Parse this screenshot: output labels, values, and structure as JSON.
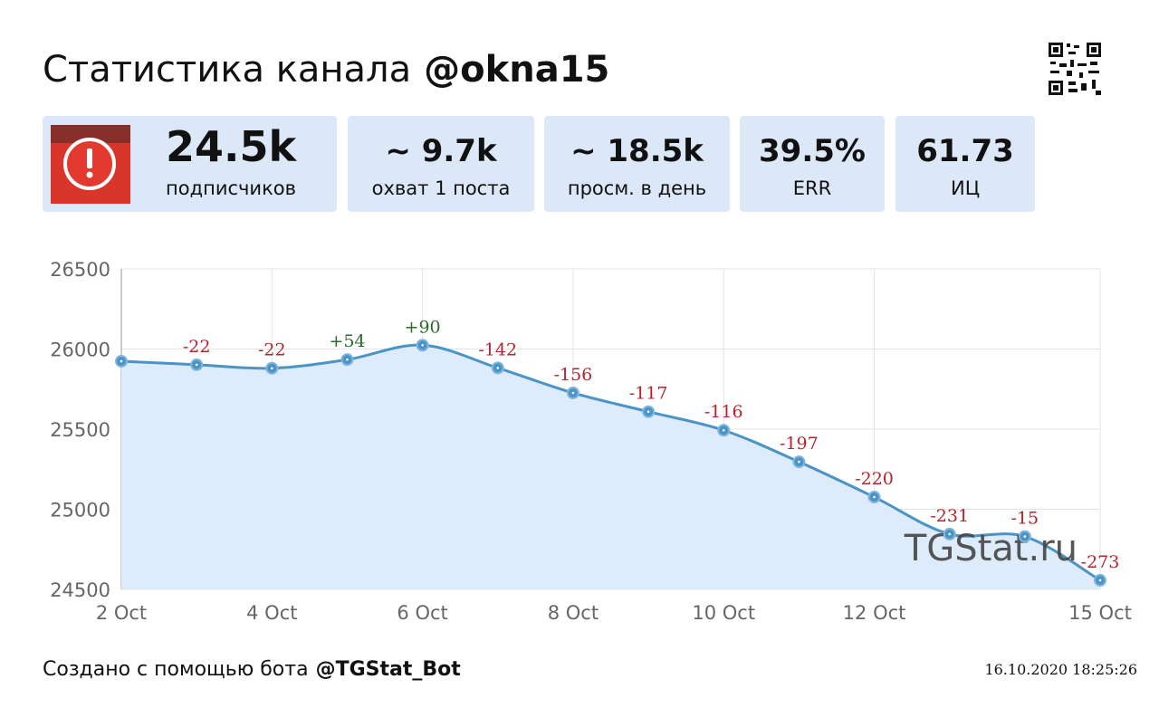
{
  "header": {
    "title": "Статистика канала",
    "channel": "@okna15"
  },
  "stats": [
    {
      "value": "24.5k",
      "label": "подписчиков"
    },
    {
      "value": "~ 9.7k",
      "label": "охват 1 поста"
    },
    {
      "value": "~ 18.5k",
      "label": "просм. в день"
    },
    {
      "value": "39.5%",
      "label": "ERR"
    },
    {
      "value": "61.73",
      "label": "ИЦ"
    }
  ],
  "chart_data": {
    "type": "area",
    "categories": [
      "2 Oct",
      null,
      "4 Oct",
      null,
      "6 Oct",
      null,
      "8 Oct",
      null,
      "10 Oct",
      null,
      "12 Oct",
      null,
      null,
      "15 Oct"
    ],
    "values": [
      25924,
      25902,
      25880,
      25934,
      26024,
      25882,
      25726,
      25609,
      25493,
      25296,
      25076,
      24845,
      24830,
      24557
    ],
    "changes": [
      null,
      {
        "value": -22,
        "label": "-22"
      },
      {
        "value": -22,
        "label": "-22"
      },
      {
        "value": 54,
        "label": "+54"
      },
      {
        "value": 90,
        "label": "+90"
      },
      {
        "value": -142,
        "label": "-142"
      },
      {
        "value": -156,
        "label": "-156"
      },
      {
        "value": -117,
        "label": "-117"
      },
      {
        "value": -116,
        "label": "-116"
      },
      {
        "value": -197,
        "label": "-197"
      },
      {
        "value": -220,
        "label": "-220"
      },
      {
        "value": -231,
        "label": "-231"
      },
      {
        "value": -15,
        "label": "-15"
      },
      {
        "value": -273,
        "label": "-273"
      }
    ],
    "color": "#4a94c6",
    "fill_color": "#deebfa",
    "up_color": "#2e6b2a",
    "down_color": "#b8232a",
    "ylim": [
      24500,
      26500
    ],
    "yticks": [
      24500,
      25000,
      25500,
      26000,
      26500
    ],
    "grid": true,
    "watermark": "TGStat.ru"
  },
  "footer": {
    "text": "Создано с помощью бота",
    "bot": "@TGStat_Bot",
    "timestamp": "16.10.2020 18:25:26"
  }
}
